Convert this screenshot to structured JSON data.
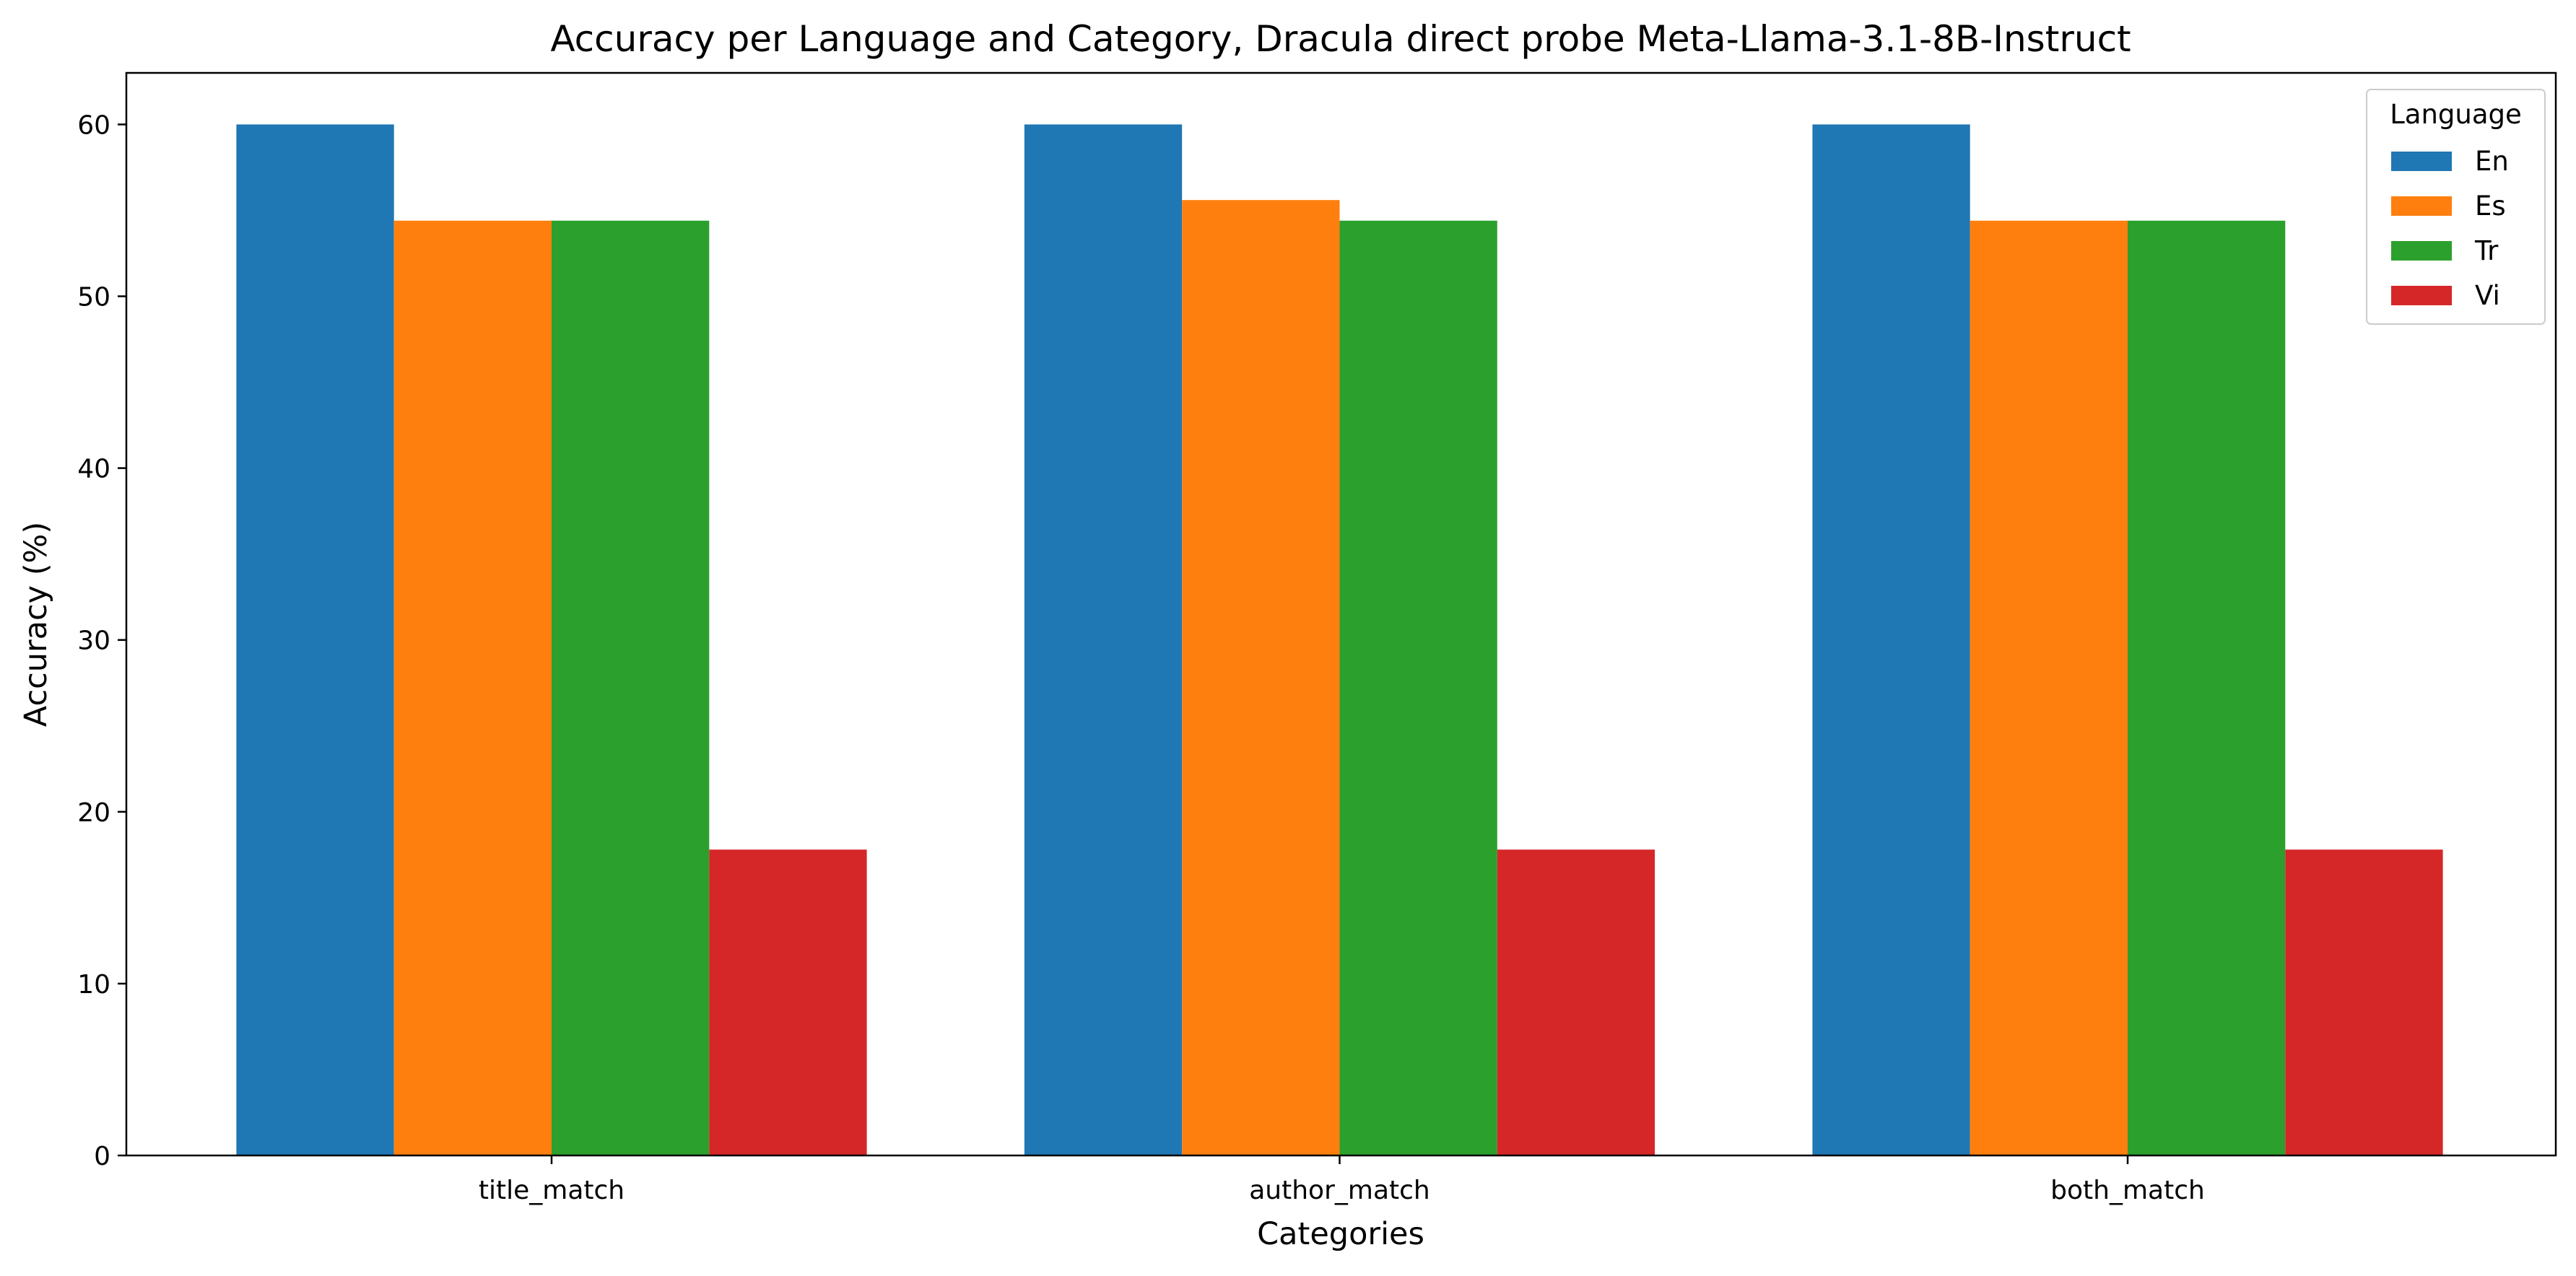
{
  "chart_data": {
    "type": "bar",
    "title": "Accuracy per Language and Category, Dracula direct probe Meta-Llama-3.1-8B-Instruct",
    "xlabel": "Categories",
    "ylabel": "Accuracy (%)",
    "categories": [
      "title_match",
      "author_match",
      "both_match"
    ],
    "series": [
      {
        "name": "En",
        "color": "#1f77b4",
        "values": [
          60.0,
          60.0,
          60.0
        ]
      },
      {
        "name": "Es",
        "color": "#ff7f0e",
        "values": [
          54.4,
          55.6,
          54.4
        ]
      },
      {
        "name": "Tr",
        "color": "#2ca02c",
        "values": [
          54.4,
          54.4,
          54.4
        ]
      },
      {
        "name": "Vi",
        "color": "#d62728",
        "values": [
          17.8,
          17.8,
          17.8
        ]
      }
    ],
    "ylim": [
      0,
      63
    ],
    "yticks": [
      0,
      10,
      20,
      30,
      40,
      50,
      60
    ],
    "grid": false,
    "legend": {
      "title": "Language",
      "position": "top-right"
    }
  }
}
